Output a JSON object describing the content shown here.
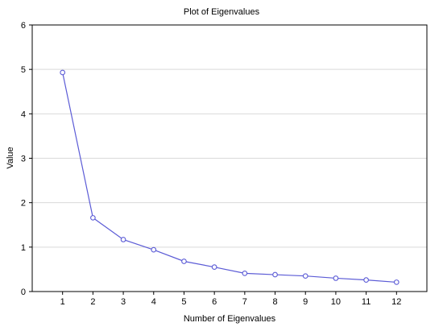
{
  "chart_data": {
    "type": "line",
    "title": "Plot of Eigenvalues",
    "xlabel": "Number of Eigenvalues",
    "ylabel": "Value",
    "x": [
      1,
      2,
      3,
      4,
      5,
      6,
      7,
      8,
      9,
      10,
      11,
      12
    ],
    "x_tick_labels": [
      "1",
      "2",
      "3",
      "4",
      "5",
      "6",
      "7",
      "8",
      "9",
      "10",
      "11",
      "12"
    ],
    "y_tick_labels": [
      "0",
      "1",
      "2",
      "3",
      "4",
      "5",
      "6"
    ],
    "y_ticks": [
      0,
      1,
      2,
      3,
      4,
      5,
      6
    ],
    "xlim": [
      0,
      13
    ],
    "ylim": [
      0,
      6
    ],
    "grid": "horizontal",
    "series": [
      {
        "values": [
          4.93,
          1.66,
          1.17,
          0.94,
          0.68,
          0.55,
          0.41,
          0.38,
          0.35,
          0.3,
          0.26,
          0.21
        ],
        "color": "#5b5bd6",
        "marker": "circle"
      }
    ]
  }
}
